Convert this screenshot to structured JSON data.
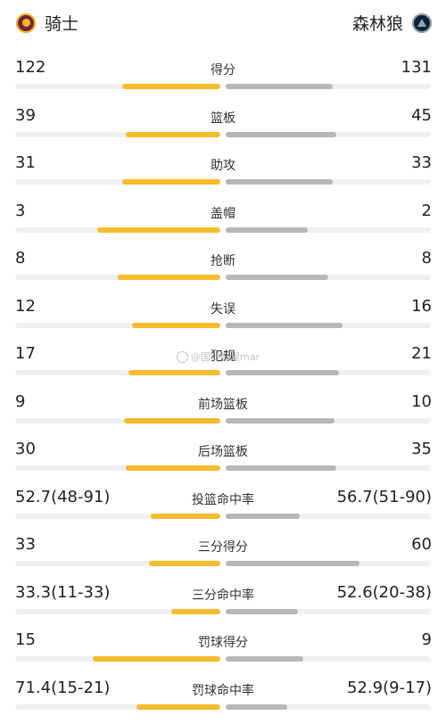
{
  "teams": {
    "home": {
      "name": "骑士",
      "logo_icon": "cavaliers-logo-icon"
    },
    "away": {
      "name": "森林狼",
      "logo_icon": "timberwolves-logo-icon"
    }
  },
  "colors": {
    "home_bar": "#f5bc2b",
    "away_bar": "#b7b7b7",
    "track": "#f0f0f2"
  },
  "stats": [
    {
      "label": "得分",
      "home": "122",
      "away": "131",
      "home_share": 0.48,
      "away_share": 0.52
    },
    {
      "label": "篮板",
      "home": "39",
      "away": "45",
      "home_share": 0.46,
      "away_share": 0.54
    },
    {
      "label": "助攻",
      "home": "31",
      "away": "33",
      "home_share": 0.48,
      "away_share": 0.52
    },
    {
      "label": "盖帽",
      "home": "3",
      "away": "2",
      "home_share": 0.6,
      "away_share": 0.4
    },
    {
      "label": "抢断",
      "home": "8",
      "away": "8",
      "home_share": 0.5,
      "away_share": 0.5
    },
    {
      "label": "失误",
      "home": "12",
      "away": "16",
      "home_share": 0.43,
      "away_share": 0.57
    },
    {
      "label": "犯规",
      "home": "17",
      "away": "21",
      "home_share": 0.45,
      "away_share": 0.55
    },
    {
      "label": "前场篮板",
      "home": "9",
      "away": "10",
      "home_share": 0.47,
      "away_share": 0.53
    },
    {
      "label": "后场篮板",
      "home": "30",
      "away": "35",
      "home_share": 0.46,
      "away_share": 0.54
    },
    {
      "label": "投篮命中率",
      "home": "52.7(48-91)",
      "away": "56.7(51-90)",
      "home_share": 0.34,
      "away_share": 0.36
    },
    {
      "label": "三分得分",
      "home": "33",
      "away": "60",
      "home_share": 0.35,
      "away_share": 0.65
    },
    {
      "label": "三分命中率",
      "home": "33.3(11-33)",
      "away": "52.6(20-38)",
      "home_share": 0.24,
      "away_share": 0.35
    },
    {
      "label": "罚球得分",
      "home": "15",
      "away": "9",
      "home_share": 0.62,
      "away_share": 0.38
    },
    {
      "label": "罚球命中率",
      "home": "71.4(15-21)",
      "away": "52.9(9-17)",
      "home_share": 0.41,
      "away_share": 0.3
    }
  ],
  "watermark": {
    "text": "@国羽猩猩mar"
  }
}
